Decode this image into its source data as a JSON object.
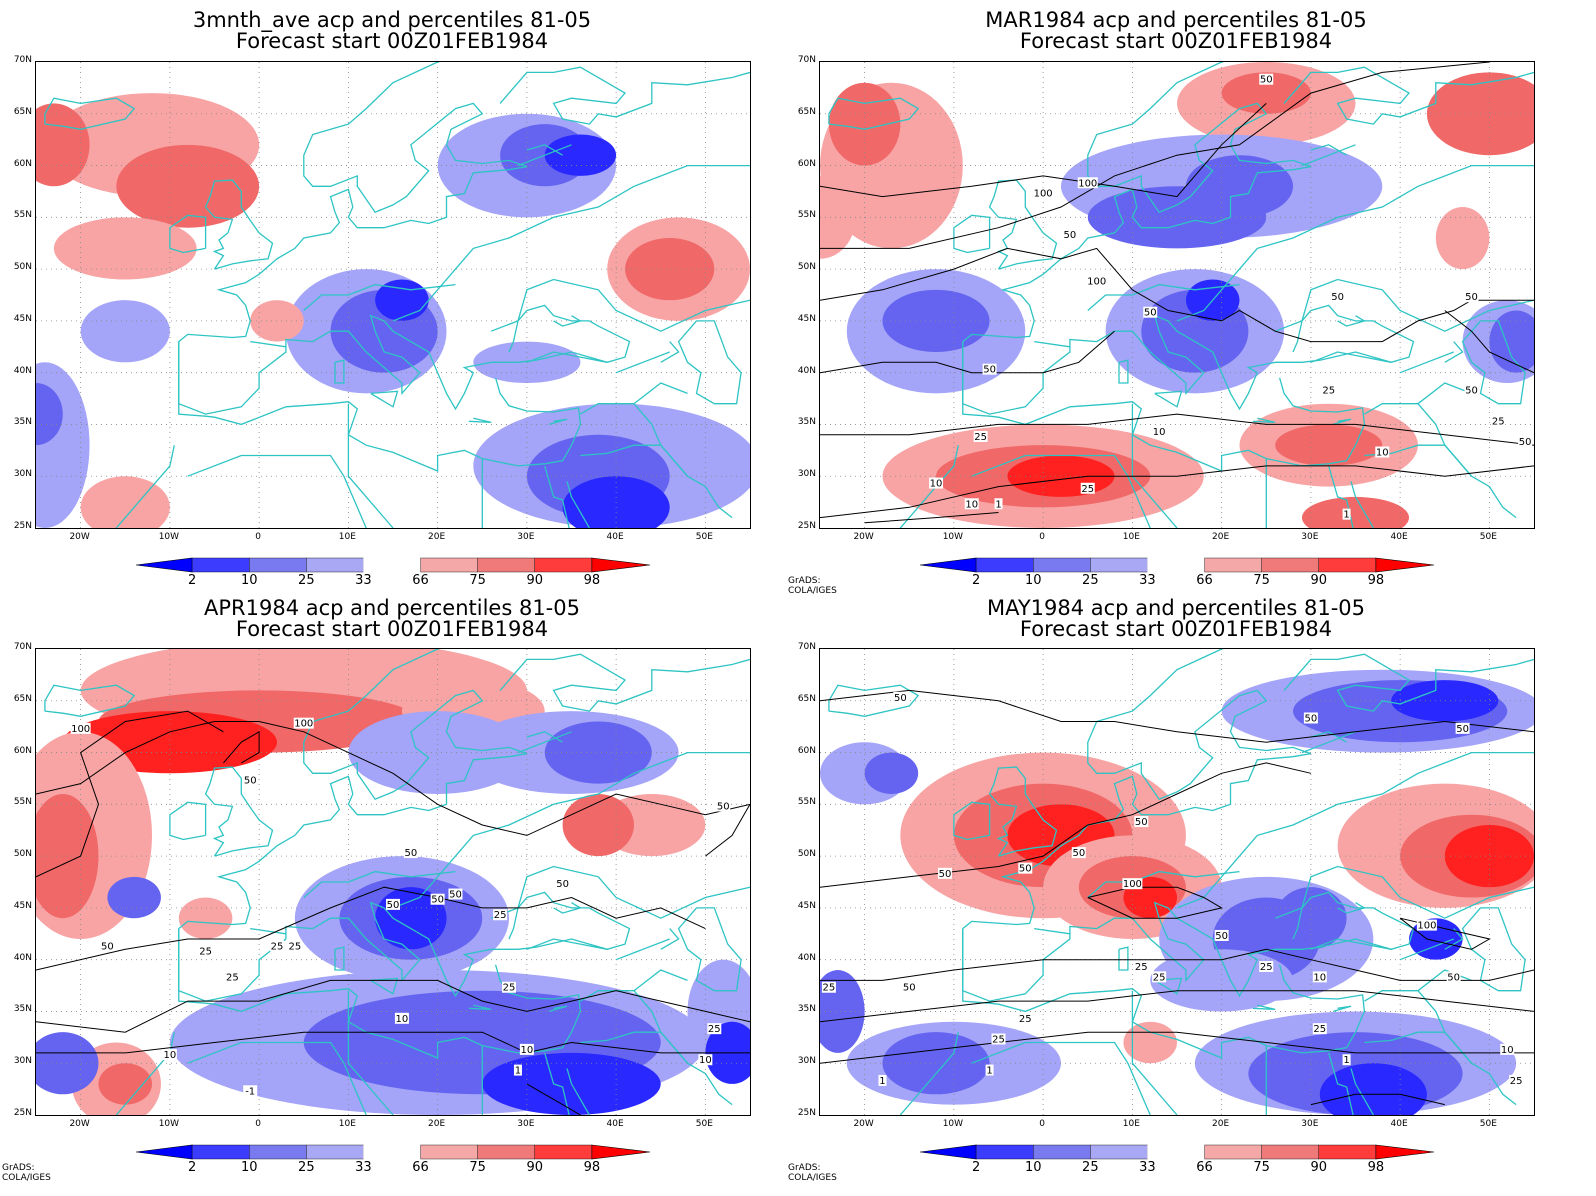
{
  "panels": [
    {
      "title1": "3mnth_ave acp and percentiles 81-05",
      "title2": "Forecast start 00Z01FEB1984",
      "credit": "",
      "contour_labels": []
    },
    {
      "title1": "MAR1984 acp and percentiles 81-05",
      "title2": "Forecast start 00Z01FEB1984",
      "credit": "GrADS: COLA/IGES",
      "contour_labels": [
        "50",
        "100",
        "100",
        "50",
        "100",
        "50",
        "50",
        "50",
        "50",
        "25",
        "50",
        "25",
        "10",
        "10",
        "50",
        "25",
        "10",
        "10",
        "1",
        "1",
        "25"
      ]
    },
    {
      "title1": "APR1984 acp and percentiles 81-05",
      "title2": "Forecast start 00Z01FEB1984",
      "credit": "GrADS: COLA/IGES",
      "contour_labels": [
        "100",
        "100",
        "50",
        "50",
        "50",
        "50",
        "50",
        "50",
        "25",
        "50",
        "25",
        "25",
        "25",
        "25",
        "10",
        "10",
        "10",
        "25",
        "1",
        "10",
        "-1",
        "25",
        "50"
      ]
    },
    {
      "title1": "MAY1984 acp and percentiles 81-05",
      "title2": "Forecast start 00Z01FEB1984",
      "credit": "GrADS: COLA/IGES",
      "contour_labels": [
        "50",
        "50",
        "50",
        "50",
        "50",
        "50",
        "50",
        "100",
        "50",
        "25",
        "100",
        "50",
        "25",
        "25",
        "25",
        "10",
        "25",
        "25",
        "25",
        "10",
        "1",
        "1",
        "1",
        "25",
        "50"
      ]
    }
  ],
  "lat_labels": [
    "70N",
    "65N",
    "60N",
    "55N",
    "50N",
    "45N",
    "40N",
    "35N",
    "30N",
    "25N"
  ],
  "lon_labels": [
    "20W",
    "10W",
    "0",
    "10E",
    "20E",
    "30E",
    "40E",
    "50E"
  ],
  "colorbar": {
    "labels": [
      "2",
      "10",
      "25",
      "33",
      "66",
      "75",
      "90",
      "98"
    ],
    "colors": [
      "#0000ff",
      "#3c3cff",
      "#7a7af0",
      "#a8a8f5",
      "#ffffff",
      "#f5a8a8",
      "#f07a7a",
      "#ff3c3c",
      "#ff0000"
    ]
  },
  "palette": {
    "coast": "#2ec4c4",
    "deep_blue": "#2828ff",
    "mid_blue": "#6464f0",
    "light_blue": "#a4a4f8",
    "light_red": "#f8a4a4",
    "mid_red": "#f06868",
    "deep_red": "#ff2020",
    "contour": "#000000"
  }
}
